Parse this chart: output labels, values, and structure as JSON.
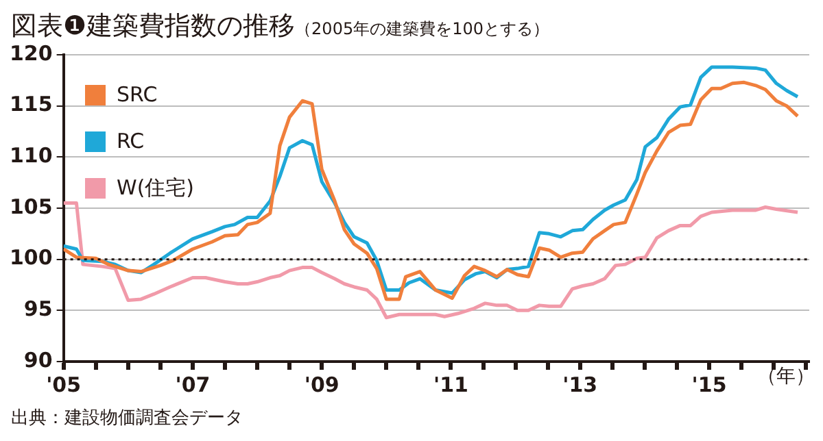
{
  "chart_data": {
    "type": "line",
    "title": "図表❶建築費指数の推移",
    "subtitle": "（2005年の建築費を100とする）",
    "xlabel": "（年）",
    "annotations": [
      "出典：建設物価調査会データ"
    ],
    "xlim": [
      2005,
      2016.55
    ],
    "xticks": [
      {
        "value": 2005,
        "label": "'05"
      },
      {
        "value": 2005.5,
        "label": null
      },
      {
        "value": 2006,
        "label": null
      },
      {
        "value": 2006.5,
        "label": null
      },
      {
        "value": 2007,
        "label": "'07"
      },
      {
        "value": 2007.5,
        "label": null
      },
      {
        "value": 2008,
        "label": null
      },
      {
        "value": 2008.5,
        "label": null
      },
      {
        "value": 2009,
        "label": "'09"
      },
      {
        "value": 2009.5,
        "label": null
      },
      {
        "value": 2010,
        "label": null
      },
      {
        "value": 2010.5,
        "label": null
      },
      {
        "value": 2011,
        "label": "'11"
      },
      {
        "value": 2011.5,
        "label": null
      },
      {
        "value": 2012,
        "label": null
      },
      {
        "value": 2012.5,
        "label": null
      },
      {
        "value": 2013,
        "label": "'13"
      },
      {
        "value": 2013.5,
        "label": null
      },
      {
        "value": 2014,
        "label": null
      },
      {
        "value": 2014.5,
        "label": null
      },
      {
        "value": 2015,
        "label": "'15"
      },
      {
        "value": 2015.5,
        "label": null
      },
      {
        "value": 2016,
        "label": null
      },
      {
        "value": 2016.5,
        "label": null
      }
    ],
    "ylim": [
      90,
      120
    ],
    "yticks": [
      90,
      95,
      100,
      105,
      110,
      115,
      120
    ],
    "grid": "y",
    "legend": "top left",
    "marker": "none",
    "line_style": "solid",
    "ref_lines": [
      {
        "axis": "y",
        "value": 100,
        "label": null,
        "color": "#231815",
        "line_style": "dotted"
      }
    ],
    "series": [
      {
        "name": "SRC",
        "color": "#f07f3c",
        "x": [
          2005.0,
          2005.2,
          2005.5,
          2005.7,
          2006.0,
          2006.2,
          2006.5,
          2006.7,
          2007.0,
          2007.3,
          2007.5,
          2007.7,
          2007.85,
          2008.0,
          2008.2,
          2008.35,
          2008.5,
          2008.7,
          2008.85,
          2009.0,
          2009.2,
          2009.35,
          2009.5,
          2009.7,
          2009.85,
          2010.0,
          2010.2,
          2010.3,
          2010.52,
          2010.76,
          2011.02,
          2011.21,
          2011.36,
          2011.53,
          2011.71,
          2011.87,
          2012.03,
          2012.2,
          2012.37,
          2012.52,
          2012.7,
          2012.88,
          2013.04,
          2013.2,
          2013.38,
          2013.52,
          2013.7,
          2013.88,
          2014.01,
          2014.19,
          2014.37,
          2014.55,
          2014.71,
          2014.87,
          2015.04,
          2015.18,
          2015.36,
          2015.54,
          2015.72,
          2015.87,
          2016.04,
          2016.2,
          2016.37
        ],
        "values": [
          101.0,
          100.2,
          100.1,
          99.5,
          98.9,
          98.8,
          99.4,
          99.9,
          101.0,
          101.7,
          102.3,
          102.4,
          103.4,
          103.6,
          104.5,
          111.1,
          113.9,
          115.5,
          115.2,
          108.8,
          105.7,
          102.9,
          101.5,
          100.6,
          99.1,
          96.1,
          96.1,
          98.3,
          98.8,
          97.0,
          96.2,
          98.4,
          99.3,
          98.9,
          98.3,
          99.0,
          98.5,
          98.3,
          101.1,
          100.9,
          100.2,
          100.6,
          100.7,
          102.0,
          102.8,
          103.4,
          103.6,
          106.4,
          108.5,
          110.6,
          112.4,
          113.1,
          113.2,
          115.6,
          116.7,
          116.7,
          117.2,
          117.3,
          117.0,
          116.6,
          115.5,
          115.0,
          114.0
        ]
      },
      {
        "name": "RC",
        "color": "#1fa8d8",
        "x": [
          2005.0,
          2005.2,
          2005.3,
          2005.6,
          2005.8,
          2006.0,
          2006.2,
          2006.4,
          2006.65,
          2007.0,
          2007.3,
          2007.5,
          2007.65,
          2007.85,
          2008.0,
          2008.2,
          2008.35,
          2008.5,
          2008.7,
          2008.85,
          2009.0,
          2009.2,
          2009.35,
          2009.5,
          2009.7,
          2009.85,
          2010.0,
          2010.2,
          2010.35,
          2010.52,
          2010.76,
          2011.02,
          2011.21,
          2011.39,
          2011.53,
          2011.71,
          2011.87,
          2012.03,
          2012.2,
          2012.37,
          2012.52,
          2012.7,
          2012.88,
          2013.04,
          2013.2,
          2013.38,
          2013.52,
          2013.7,
          2013.88,
          2014.01,
          2014.19,
          2014.37,
          2014.55,
          2014.71,
          2014.87,
          2015.04,
          2015.36,
          2015.72,
          2015.87,
          2016.04,
          2016.2,
          2016.37
        ],
        "values": [
          101.3,
          101.0,
          99.9,
          99.8,
          99.5,
          98.9,
          98.7,
          99.5,
          100.6,
          102.0,
          102.7,
          103.2,
          103.4,
          104.1,
          104.1,
          105.7,
          108.1,
          110.9,
          111.6,
          111.2,
          107.6,
          105.5,
          103.6,
          102.2,
          101.6,
          99.9,
          97.0,
          97.0,
          97.7,
          98.1,
          97.0,
          96.7,
          98.0,
          98.6,
          98.8,
          98.2,
          99.0,
          99.1,
          99.3,
          102.6,
          102.5,
          102.2,
          102.8,
          102.9,
          103.9,
          104.8,
          105.3,
          105.8,
          107.8,
          111.0,
          111.9,
          113.7,
          114.9,
          115.1,
          117.8,
          118.8,
          118.8,
          118.7,
          118.5,
          117.2,
          116.5,
          115.9
        ]
      },
      {
        "name": "W(住宅)",
        "color": "#f19aa9",
        "x": [
          2005.0,
          2005.2,
          2005.3,
          2005.6,
          2005.8,
          2006.0,
          2006.2,
          2006.4,
          2006.65,
          2007.0,
          2007.2,
          2007.5,
          2007.7,
          2007.85,
          2008.0,
          2008.2,
          2008.35,
          2008.5,
          2008.7,
          2008.85,
          2009.0,
          2009.2,
          2009.35,
          2009.5,
          2009.7,
          2009.85,
          2010.0,
          2010.2,
          2010.52,
          2010.76,
          2010.9,
          2011.11,
          2011.36,
          2011.53,
          2011.71,
          2011.87,
          2012.03,
          2012.2,
          2012.37,
          2012.52,
          2012.7,
          2012.88,
          2013.04,
          2013.2,
          2013.38,
          2013.55,
          2013.7,
          2013.88,
          2014.01,
          2014.19,
          2014.37,
          2014.55,
          2014.71,
          2014.87,
          2015.04,
          2015.36,
          2015.72,
          2015.87,
          2016.04,
          2016.37
        ],
        "values": [
          105.5,
          105.5,
          99.5,
          99.3,
          99.1,
          96.0,
          96.1,
          96.6,
          97.3,
          98.2,
          98.2,
          97.8,
          97.6,
          97.6,
          97.8,
          98.2,
          98.4,
          98.9,
          99.2,
          99.2,
          98.7,
          98.1,
          97.6,
          97.3,
          97.0,
          96.1,
          94.3,
          94.6,
          94.6,
          94.6,
          94.4,
          94.7,
          95.2,
          95.7,
          95.5,
          95.5,
          95.0,
          95.0,
          95.5,
          95.4,
          95.4,
          97.1,
          97.4,
          97.6,
          98.1,
          99.4,
          99.5,
          100.1,
          100.2,
          102.1,
          102.8,
          103.3,
          103.3,
          104.2,
          104.6,
          104.8,
          104.8,
          105.1,
          104.9,
          104.6
        ]
      }
    ]
  }
}
